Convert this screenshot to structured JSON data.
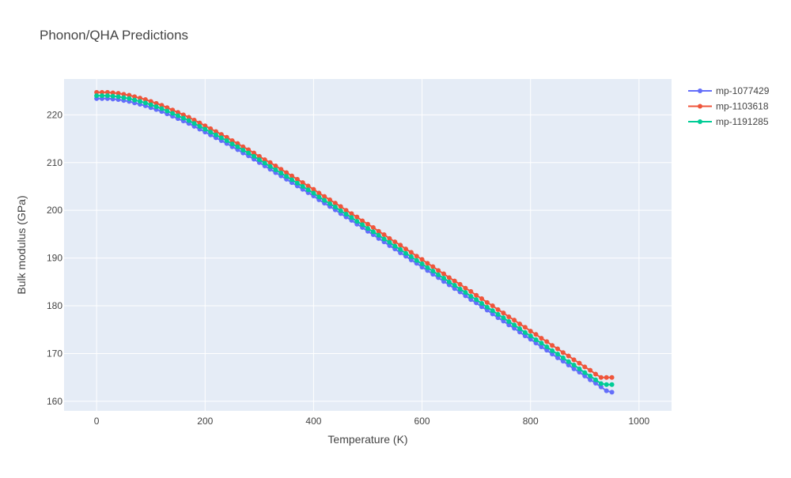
{
  "chart_data": {
    "type": "line",
    "title": "Phonon/QHA Predictions",
    "xlabel": "Temperature (K)",
    "ylabel": "Bulk modulus (GPa)",
    "xlim": [
      -60,
      1060
    ],
    "ylim": [
      158,
      227.5
    ],
    "x_ticks": [
      0,
      200,
      400,
      600,
      800,
      1000
    ],
    "y_ticks": [
      160,
      170,
      180,
      190,
      200,
      210,
      220
    ],
    "x_tick_labels": [
      "0",
      "200",
      "400",
      "600",
      "800",
      "1000"
    ],
    "y_tick_labels": [
      "160",
      "170",
      "180",
      "190",
      "200",
      "210",
      "220"
    ],
    "grid": true,
    "legend": "right",
    "plot_background": "#e5ecf6",
    "x_start": 0,
    "x_step": 10,
    "series": [
      {
        "name": "mp-1077429",
        "color": "#636efa",
        "values": [
          223.4,
          223.4,
          223.4,
          223.3,
          223.2,
          223.0,
          222.8,
          222.5,
          222.2,
          221.9,
          221.5,
          221.1,
          220.7,
          220.2,
          219.7,
          219.2,
          218.7,
          218.2,
          217.6,
          217.0,
          216.4,
          215.8,
          215.2,
          214.6,
          214.0,
          213.3,
          212.7,
          212.0,
          211.4,
          210.7,
          210.0,
          209.3,
          208.6,
          207.9,
          207.2,
          206.5,
          205.8,
          205.1,
          204.4,
          203.7,
          203.0,
          202.2,
          201.5,
          200.8,
          200.1,
          199.3,
          198.6,
          197.9,
          197.1,
          196.4,
          195.6,
          194.9,
          194.1,
          193.4,
          192.6,
          191.9,
          191.1,
          190.4,
          189.6,
          188.9,
          188.1,
          187.4,
          186.6,
          185.9,
          185.1,
          184.4,
          183.6,
          182.9,
          182.1,
          181.3,
          180.6,
          179.8,
          179.1,
          178.3,
          177.5,
          176.8,
          176.0,
          175.3,
          174.5,
          173.7,
          173.0,
          172.2,
          171.4,
          170.7,
          169.9,
          169.1,
          168.4,
          167.6,
          166.8,
          166.1,
          165.3,
          164.5,
          163.8,
          163.0,
          162.2,
          161.9
        ]
      },
      {
        "name": "mp-1103618",
        "color": "#ef553b",
        "values": [
          224.7,
          224.7,
          224.7,
          224.6,
          224.5,
          224.3,
          224.1,
          223.8,
          223.5,
          223.2,
          222.8,
          222.4,
          222.0,
          221.5,
          221.0,
          220.5,
          220.0,
          219.5,
          218.9,
          218.3,
          217.7,
          217.1,
          216.5,
          215.9,
          215.3,
          214.6,
          214.0,
          213.3,
          212.7,
          212.0,
          211.3,
          210.6,
          210.0,
          209.3,
          208.6,
          207.9,
          207.2,
          206.5,
          205.8,
          205.1,
          204.4,
          203.6,
          202.9,
          202.2,
          201.5,
          200.8,
          200.0,
          199.3,
          198.6,
          197.8,
          197.1,
          196.4,
          195.6,
          194.9,
          194.1,
          193.4,
          192.7,
          191.9,
          191.2,
          190.4,
          189.7,
          188.9,
          188.2,
          187.4,
          186.7,
          185.9,
          185.2,
          184.5,
          183.7,
          183.0,
          182.2,
          181.5,
          180.7,
          180.0,
          179.2,
          178.5,
          177.7,
          177.0,
          176.2,
          175.5,
          174.7,
          174.0,
          173.2,
          172.5,
          171.7,
          171.0,
          170.2,
          169.5,
          168.7,
          168.0,
          167.2,
          166.5,
          165.7,
          165.0,
          165.0,
          165.0
        ]
      },
      {
        "name": "mp-1191285",
        "color": "#00cc96",
        "values": [
          224.0,
          224.0,
          224.0,
          223.9,
          223.8,
          223.6,
          223.4,
          223.1,
          222.8,
          222.5,
          222.1,
          221.7,
          221.3,
          220.8,
          220.3,
          219.8,
          219.3,
          218.8,
          218.2,
          217.6,
          217.0,
          216.4,
          215.8,
          215.2,
          214.6,
          213.9,
          213.3,
          212.6,
          212.0,
          211.3,
          210.6,
          209.9,
          209.2,
          208.5,
          207.8,
          207.1,
          206.4,
          205.7,
          205.0,
          204.3,
          203.6,
          202.8,
          202.1,
          201.4,
          200.7,
          199.9,
          199.2,
          198.5,
          197.7,
          197.0,
          196.2,
          195.5,
          194.8,
          194.0,
          193.3,
          192.5,
          191.8,
          191.0,
          190.3,
          189.5,
          188.8,
          188.0,
          187.3,
          186.5,
          185.8,
          185.0,
          184.3,
          183.5,
          182.8,
          182.0,
          181.3,
          180.5,
          179.7,
          179.0,
          178.2,
          177.5,
          176.7,
          176.0,
          175.2,
          174.4,
          173.7,
          172.9,
          172.2,
          171.4,
          170.6,
          169.9,
          169.1,
          168.3,
          167.6,
          166.8,
          166.0,
          165.3,
          164.5,
          163.7,
          163.5,
          163.5
        ]
      }
    ]
  }
}
